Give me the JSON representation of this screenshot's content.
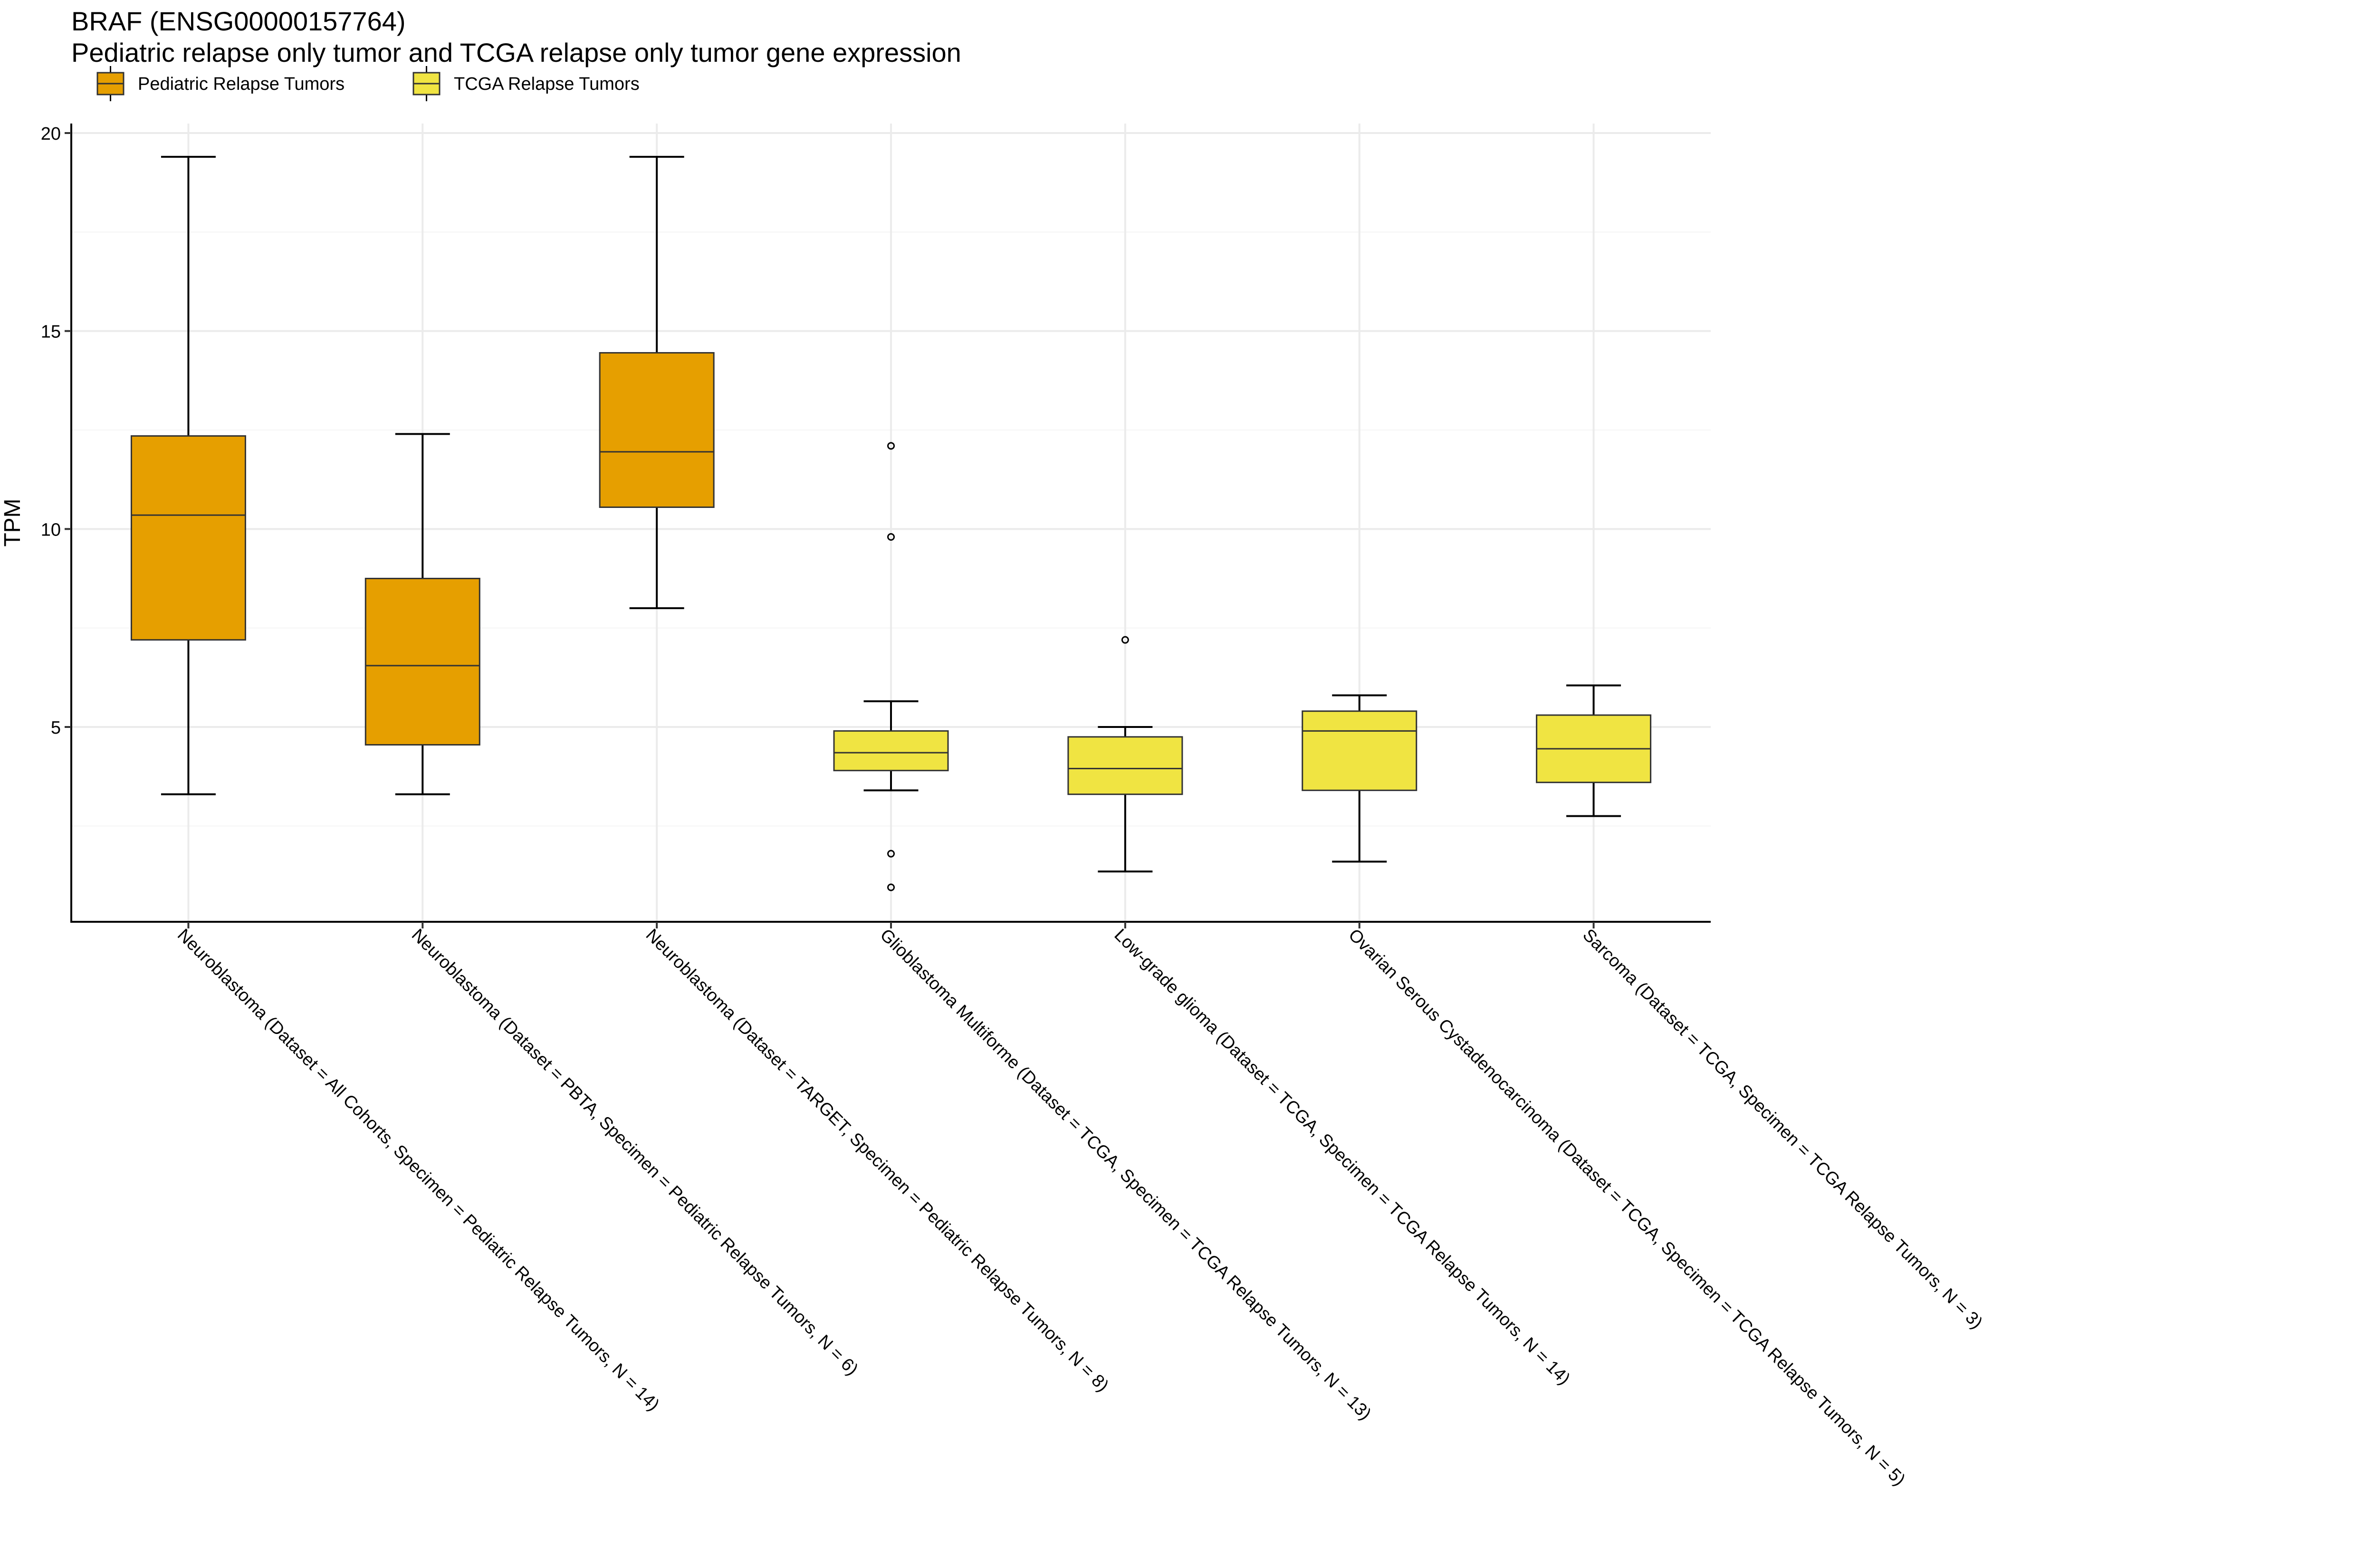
{
  "chart_data": {
    "type": "boxplot",
    "title": "BRAF (ENSG00000157764)",
    "subtitle": "Pediatric relapse only tumor and TCGA relapse only tumor gene expression",
    "ylabel": "TPM",
    "xlabel": "",
    "ylim": [
      0,
      20
    ],
    "yticks": [
      5,
      10,
      15,
      20
    ],
    "grid": true,
    "legend": {
      "position": "top-left",
      "entries": [
        {
          "name": "Pediatric Relapse Tumors",
          "color": "#E69F00"
        },
        {
          "name": "TCGA Relapse Tumors",
          "color": "#F0E442"
        }
      ]
    },
    "categories": [
      "Neuroblastoma  (Dataset = All Cohorts, Specimen = Pediatric Relapse Tumors, N = 14)",
      "Neuroblastoma  (Dataset = PBTA, Specimen = Pediatric Relapse Tumors, N = 6)",
      "Neuroblastoma  (Dataset = TARGET, Specimen = Pediatric Relapse Tumors, N = 8)",
      "Glioblastoma Multiforme  (Dataset = TCGA, Specimen = TCGA Relapse Tumors, N = 13)",
      "Low-grade glioma  (Dataset = TCGA, Specimen = TCGA Relapse Tumors, N = 14)",
      "Ovarian Serous Cystadenocarcinoma  (Dataset = TCGA, Specimen = TCGA Relapse Tumors, N = 5)",
      "Sarcoma  (Dataset = TCGA, Specimen = TCGA Relapse Tumors, N = 3)"
    ],
    "boxes": [
      {
        "series": "Pediatric Relapse Tumors",
        "whisker_low": 3.3,
        "q1": 7.2,
        "median": 10.35,
        "q3": 12.35,
        "whisker_high": 19.4,
        "outliers": []
      },
      {
        "series": "Pediatric Relapse Tumors",
        "whisker_low": 3.3,
        "q1": 4.55,
        "median": 6.55,
        "q3": 8.75,
        "whisker_high": 12.4,
        "outliers": []
      },
      {
        "series": "Pediatric Relapse Tumors",
        "whisker_low": 8.0,
        "q1": 10.55,
        "median": 11.95,
        "q3": 14.45,
        "whisker_high": 19.4,
        "outliers": []
      },
      {
        "series": "TCGA Relapse Tumors",
        "whisker_low": 3.4,
        "q1": 3.9,
        "median": 4.35,
        "q3": 4.9,
        "whisker_high": 5.65,
        "outliers": [
          12.1,
          9.8,
          1.8,
          0.95
        ]
      },
      {
        "series": "TCGA Relapse Tumors",
        "whisker_low": 1.35,
        "q1": 3.3,
        "median": 3.95,
        "q3": 4.75,
        "whisker_high": 5.0,
        "outliers": [
          7.2
        ]
      },
      {
        "series": "TCGA Relapse Tumors",
        "whisker_low": 1.6,
        "q1": 3.4,
        "median": 4.9,
        "q3": 5.4,
        "whisker_high": 5.8,
        "outliers": []
      },
      {
        "series": "TCGA Relapse Tumors",
        "whisker_low": 2.75,
        "q1": 3.6,
        "median": 4.45,
        "q3": 5.3,
        "whisker_high": 6.05,
        "outliers": []
      }
    ]
  }
}
